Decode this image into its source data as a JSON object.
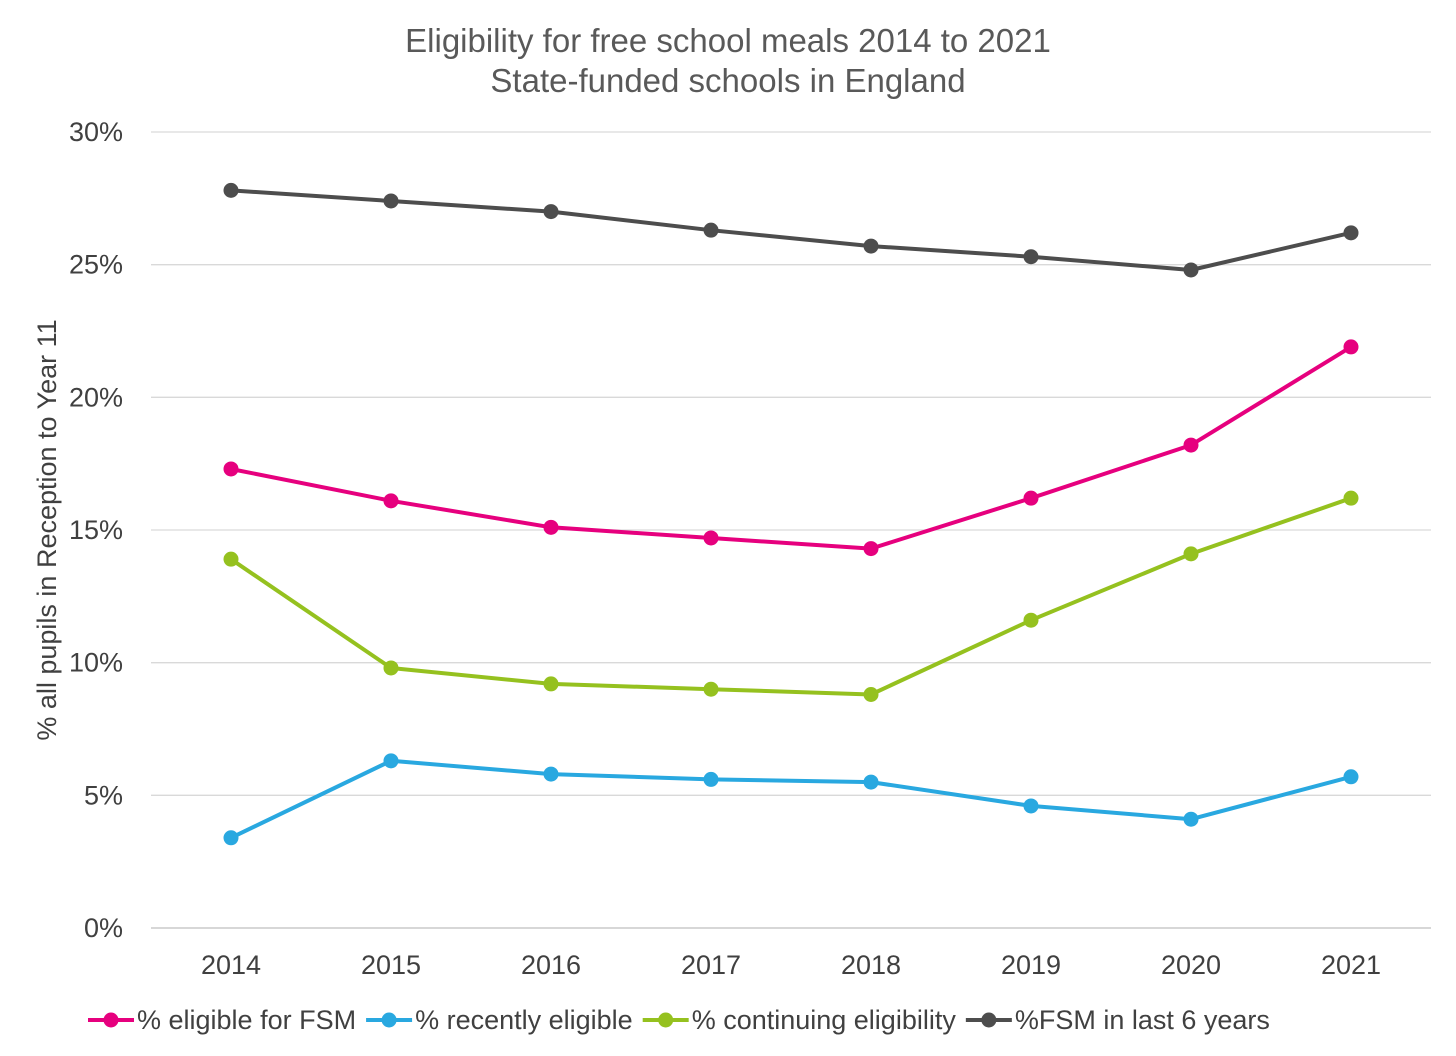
{
  "chart_data": {
    "type": "line",
    "title": "Eligibility for free school meals 2014 to 2021",
    "subtitle": "State-funded schools in England",
    "xlabel": "",
    "ylabel": "% all pupils in Reception to Year 11",
    "categories": [
      "2014",
      "2015",
      "2016",
      "2017",
      "2018",
      "2019",
      "2020",
      "2021"
    ],
    "ylim": [
      0,
      30
    ],
    "y_ticks": [
      0,
      5,
      10,
      15,
      20,
      25,
      30
    ],
    "y_tick_labels": [
      "0%",
      "5%",
      "10%",
      "15%",
      "20%",
      "25%",
      "30%"
    ],
    "grid": "horizontal",
    "legend_position": "bottom",
    "series": [
      {
        "name": "% eligible for FSM",
        "color": "#e6007e",
        "values": [
          17.3,
          16.1,
          15.1,
          14.7,
          14.3,
          16.2,
          18.2,
          21.9
        ]
      },
      {
        "name": "% recently eligible",
        "color": "#29a8e0",
        "values": [
          3.4,
          6.3,
          5.8,
          5.6,
          5.5,
          4.6,
          4.1,
          5.7
        ]
      },
      {
        "name": "% continuing eligibility",
        "color": "#95c11f",
        "values": [
          13.9,
          9.8,
          9.2,
          9.0,
          8.8,
          11.6,
          14.1,
          16.2
        ]
      },
      {
        "name": "%FSM in last 6 years",
        "color": "#4d4d4d",
        "values": [
          27.8,
          27.4,
          27.0,
          26.3,
          25.7,
          25.3,
          24.8,
          26.2
        ]
      }
    ]
  }
}
